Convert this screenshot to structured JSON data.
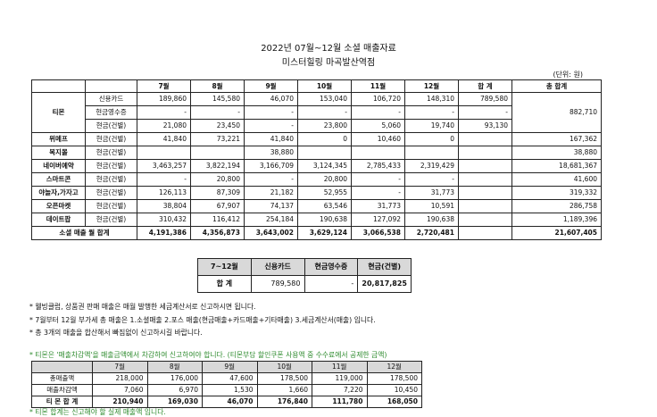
{
  "title_line1": "2022년 07월~12월 소셜 매출자료",
  "title_line2": "미스터힐링 마곡발산역점",
  "unit": "(단위: 원)",
  "main_table": {
    "headers": [
      "",
      "",
      "7월",
      "8월",
      "9월",
      "10월",
      "11월",
      "12월",
      "합 계",
      "총 합계"
    ],
    "tmon_channel": "티몬",
    "tmon_grand_total": "882,710",
    "tmon_rows": [
      {
        "method": "신용카드",
        "values": [
          "189,860",
          "145,580",
          "46,070",
          "153,040",
          "106,720",
          "148,310"
        ],
        "sum": "789,580"
      },
      {
        "method": "현금영수증",
        "values": [
          "-",
          "-",
          "-",
          "-",
          "-",
          "-"
        ],
        "sum": "-"
      },
      {
        "method": "현금(건별)",
        "values": [
          "21,080",
          "23,450",
          "-",
          "23,800",
          "5,060",
          "19,740"
        ],
        "sum": "93,130"
      }
    ],
    "other_rows": [
      {
        "channel": "위메프",
        "method": "현금(건별)",
        "values": [
          "41,840",
          "73,221",
          "41,840",
          "0",
          "10,460",
          "0"
        ],
        "sum": "",
        "total": "167,362"
      },
      {
        "channel": "복지몰",
        "method": "현금(건별)",
        "values": [
          "",
          "",
          "38,880",
          "",
          "",
          ""
        ],
        "sum": "",
        "total": "38,880"
      },
      {
        "channel": "네이버예약",
        "method": "현금(건별)",
        "values": [
          "3,463,257",
          "3,822,194",
          "3,166,709",
          "3,124,345",
          "2,785,433",
          "2,319,429"
        ],
        "sum": "",
        "total": "18,681,367"
      },
      {
        "channel": "스마트콘",
        "method": "현금(건별)",
        "values": [
          "-",
          "20,800",
          "-",
          "20,800",
          "-",
          "-"
        ],
        "sum": "",
        "total": "41,600"
      },
      {
        "channel": "야놀자,가자고",
        "method": "현금(건별)",
        "values": [
          "126,113",
          "87,309",
          "21,182",
          "52,955",
          "-",
          "31,773"
        ],
        "sum": "",
        "total": "319,332"
      },
      {
        "channel": "오픈마켓",
        "method": "현금(건별)",
        "values": [
          "38,804",
          "67,907",
          "74,137",
          "63,546",
          "31,773",
          "10,591"
        ],
        "sum": "",
        "total": "286,758"
      },
      {
        "channel": "데이트팝",
        "method": "현금(건별)",
        "values": [
          "310,432",
          "116,412",
          "254,184",
          "190,638",
          "127,092",
          "190,638"
        ],
        "sum": "",
        "total": "1,189,396"
      }
    ],
    "total_row": {
      "label": "소셜 매출 월 합계",
      "values": [
        "4,191,386",
        "4,356,873",
        "3,643,002",
        "3,629,124",
        "3,066,538",
        "2,720,481"
      ],
      "sum": "",
      "total": "21,607,405"
    }
  },
  "summary_table": {
    "headers": [
      "7~12월",
      "신용카드",
      "현금영수증",
      "현금(건별)"
    ],
    "row": {
      "label": "합 계",
      "card": "789,580",
      "receipt": "-",
      "cash": "20,817,825"
    }
  },
  "notes": [
    "* 웰빙클럽, 상품권 판매 매출은 매월 발행한 세금계산서로 신고하시면 됩니다.",
    "* 7월부터 12월 부가세 총 매출은 1.소셜매출 2.포스 매출(현금매출+카드매출+기타매출) 3.세금계산서(매출) 입니다.",
    "* 총 3개의 매출을 합산해서 빠짐없이 신고하시길 바랍니다."
  ],
  "green_note": "* 티몬은 '매출차감액'을 매출금액에서 차감하여 신고하여야 합니다. (티몬부담 할인쿠폰 사용액 중 수수료에서 공제한 금액)",
  "tmon_table": {
    "headers": [
      "",
      "7월",
      "8월",
      "9월",
      "10월",
      "11월",
      "12월"
    ],
    "rows": [
      {
        "label": "총매출액",
        "values": [
          "218,000",
          "176,000",
          "47,600",
          "178,500",
          "119,000",
          "178,500"
        ]
      },
      {
        "label": "매출차감액",
        "values": [
          "7,060",
          "6,970",
          "1,530",
          "1,660",
          "7,220",
          "10,450"
        ]
      }
    ],
    "total_row": {
      "label": "티 몬 합 계",
      "values": [
        "210,940",
        "169,030",
        "46,070",
        "176,840",
        "111,780",
        "168,050"
      ]
    }
  },
  "cut_text": "* 티몬 합계는 신고해야 할 실제 매출액 입니다."
}
